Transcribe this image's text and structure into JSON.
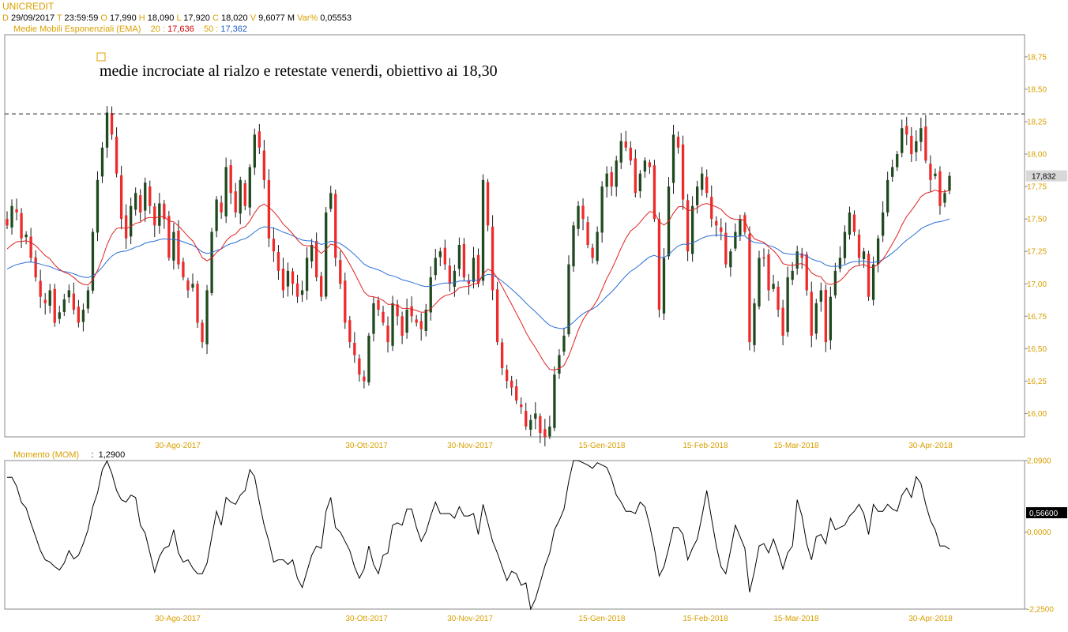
{
  "header": {
    "symbol": "UNICREDIT",
    "date_label": "D",
    "date": "29/09/2017",
    "time_label": "T",
    "time": "23:59:59",
    "open_label": "O",
    "open": "17,990",
    "high_label": "H",
    "high": "18,090",
    "low_label": "L",
    "low": "17,920",
    "close_label": "C",
    "close": "18,020",
    "volume_label": "V",
    "volume": "9,6077 M",
    "var_label": "Var%",
    "var": "0,05553"
  },
  "ema": {
    "label": "Medie Mobili Esponenziali (EMA)",
    "p1_label": "20 :",
    "p1_value": "17,636",
    "p2_label": "50 :",
    "p2_value": "17,362"
  },
  "annotation": "medie incrociate al rialzo e retestate venerdi, obiettivo ai 18,30",
  "momentum": {
    "label": "Momento (MOM)",
    "sep": ":",
    "value": "1,2900"
  },
  "colors": {
    "up": "#1f4a1f",
    "down": "#ee2a2a",
    "ema20": "#e02020",
    "ema50": "#2a6fd6",
    "axis_text": "#d8a000",
    "annotation_box": "#e0a000"
  },
  "chart_data": [
    {
      "type": "candlestick",
      "title": "UNICREDIT",
      "ylim": [
        15.82,
        18.92
      ],
      "y_ticks": [
        "16,00",
        "16,25",
        "16,50",
        "16,75",
        "17,00",
        "17,25",
        "17,50",
        "17,75",
        "18,00",
        "18,25",
        "18,50",
        "18,75"
      ],
      "x_tick_labels": [
        "30-Ago-2017",
        "30-Ott-2017",
        "30-Nov-2017",
        "15-Gen-2018",
        "15-Feb-2018",
        "15-Mar-2018",
        "30-Apr-2018"
      ],
      "last_price_label": "17,832",
      "resistance_level": 18.31,
      "close": [
        17.45,
        17.6,
        17.55,
        17.35,
        17.38,
        17.2,
        17.05,
        16.9,
        16.85,
        16.95,
        16.7,
        16.78,
        16.88,
        16.95,
        16.8,
        16.7,
        16.8,
        16.95,
        17.4,
        17.8,
        18.05,
        18.32,
        18.15,
        17.85,
        17.5,
        17.35,
        17.6,
        17.7,
        17.55,
        17.78,
        17.6,
        17.45,
        17.62,
        17.5,
        17.2,
        17.4,
        17.15,
        17.05,
        16.95,
        17.0,
        16.7,
        16.55,
        16.95,
        17.4,
        17.65,
        17.55,
        17.9,
        17.7,
        17.55,
        17.8,
        17.6,
        17.9,
        18.15,
        18.05,
        17.8,
        17.35,
        17.25,
        17.1,
        16.95,
        17.1,
        17.0,
        16.9,
        16.95,
        17.2,
        17.3,
        17.05,
        16.9,
        17.55,
        17.7,
        17.2,
        17.0,
        16.7,
        16.55,
        16.45,
        16.3,
        16.25,
        16.6,
        16.85,
        16.8,
        16.7,
        16.55,
        16.85,
        16.75,
        16.6,
        16.8,
        16.75,
        16.7,
        16.65,
        16.8,
        17.05,
        17.2,
        17.25,
        17.15,
        17.0,
        17.1,
        17.3,
        17.05,
        17.0,
        17.2,
        17.0,
        17.8,
        17.45,
        16.95,
        16.55,
        16.35,
        16.25,
        16.2,
        16.1,
        16.05,
        15.9,
        15.95,
        16.0,
        15.85,
        15.82,
        15.9,
        16.3,
        16.45,
        16.6,
        17.15,
        17.45,
        17.6,
        17.5,
        17.3,
        17.2,
        17.4,
        17.75,
        17.85,
        17.75,
        17.95,
        18.1,
        18.05,
        17.95,
        17.7,
        17.85,
        17.95,
        17.9,
        17.5,
        16.8,
        17.2,
        17.75,
        18.15,
        18.05,
        17.65,
        17.25,
        17.6,
        17.75,
        17.85,
        17.7,
        17.5,
        17.45,
        17.4,
        17.15,
        17.25,
        17.4,
        17.5,
        17.4,
        16.55,
        16.85,
        17.2,
        17.2,
        16.95,
        17.0,
        16.8,
        16.6,
        17.05,
        17.1,
        17.25,
        17.2,
        16.95,
        16.6,
        16.85,
        16.95,
        16.55,
        16.9,
        17.1,
        17.2,
        17.4,
        17.55,
        17.4,
        17.2,
        17.25,
        16.9,
        17.15,
        17.35,
        17.55,
        17.8,
        17.9,
        18.0,
        18.2,
        18.15,
        18.0,
        18.1,
        18.2,
        17.95,
        17.8,
        17.85,
        17.6,
        17.7,
        17.832
      ]
    },
    {
      "type": "line",
      "name": "Momento (MOM)",
      "ylim": [
        -2.25,
        2.09
      ],
      "y_ticks": [
        "2,0900",
        "0,0000",
        "-2,2500"
      ],
      "last_value_label": "0,56600",
      "x_tick_labels": [
        "30-Ago-2017",
        "30-Ott-2017",
        "30-Nov-2017",
        "15-Gen-2018",
        "15-Feb-2018",
        "15-Mar-2018",
        "30-Apr-2018"
      ]
    }
  ]
}
